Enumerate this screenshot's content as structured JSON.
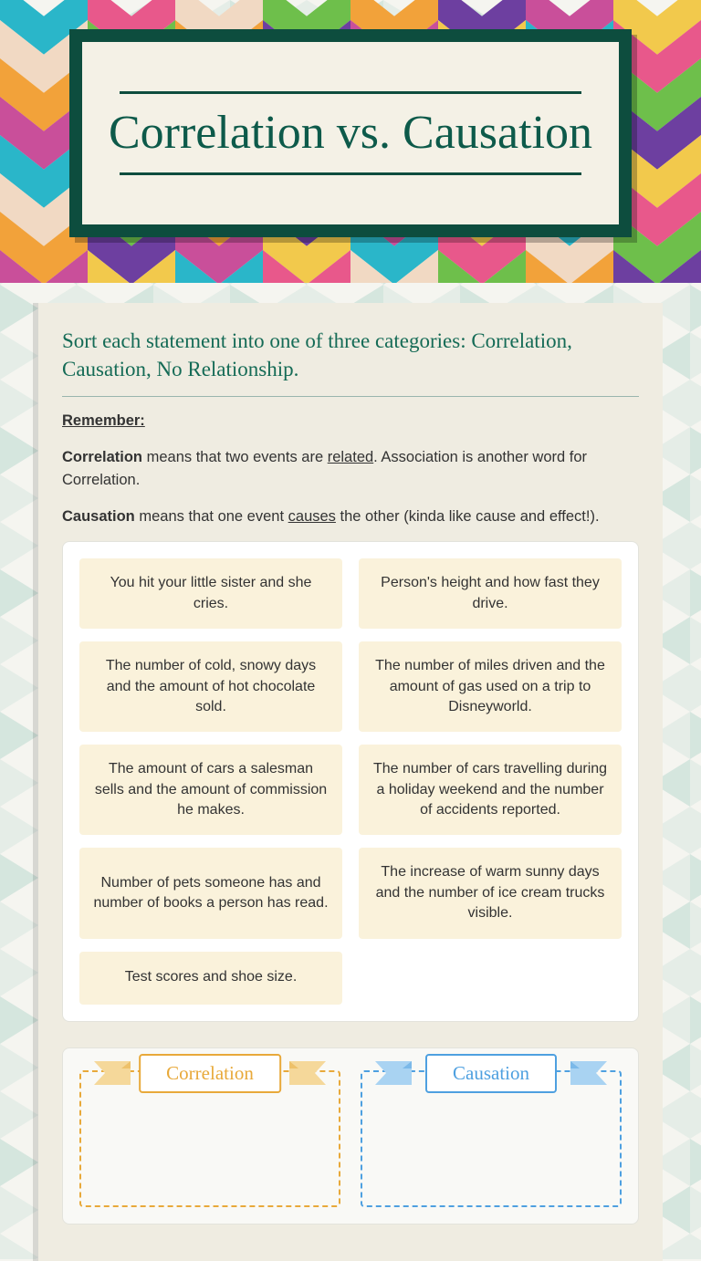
{
  "colors": {
    "title_frame_bg": "#0d4d3e",
    "title_inner_bg": "#f4f1e6",
    "title_text": "#0d5a4a",
    "panel_bg": "#efece1",
    "instruction_text": "#156b56",
    "card_bg": "#faf2db",
    "orange": "#e8a93a",
    "orange_light": "#f5d89a",
    "blue": "#4ea0e0",
    "blue_light": "#a9d3f2",
    "chevron_palette": [
      "#2ab6c9",
      "#e8588b",
      "#f1d9c3",
      "#6ebf4b",
      "#f2a23a",
      "#6d3fa0",
      "#c94f9a",
      "#f2c94c"
    ],
    "bg_triangle": "#b9d8cf",
    "bg_base": "#f5f5f0"
  },
  "title": "Correlation vs. Causation",
  "instructions": "Sort each statement into one of three categories: Correlation, Causation, No Relationship.",
  "remember": {
    "label": "Remember:",
    "line1_bold": "Correlation",
    "line1_mid": " means that two events are ",
    "line1_u": "related",
    "line1_end": ". Association is another word for Correlation.",
    "line2_bold": "Causation",
    "line2_mid": " means that one event ",
    "line2_u": "causes",
    "line2_end": " the other (kinda like cause and effect!)."
  },
  "cards": [
    "You hit your little sister and she cries.",
    "Person's height and how fast they drive.",
    "The number of cold, snowy days and the amount of hot chocolate sold.",
    "The number of miles driven and the amount of gas used on a trip to Disneyworld.",
    "The amount of cars a salesman sells and the amount of commission he makes.",
    "The number of cars travelling during a holiday weekend and the number of accidents reported.",
    "Number of pets someone has and number of books a person has read.",
    "The increase of warm sunny days and the number of ice cream trucks visible.",
    "Test scores and shoe size."
  ],
  "drop_zones": [
    {
      "label": "Correlation",
      "color": "orange"
    },
    {
      "label": "Causation",
      "color": "blue"
    }
  ]
}
